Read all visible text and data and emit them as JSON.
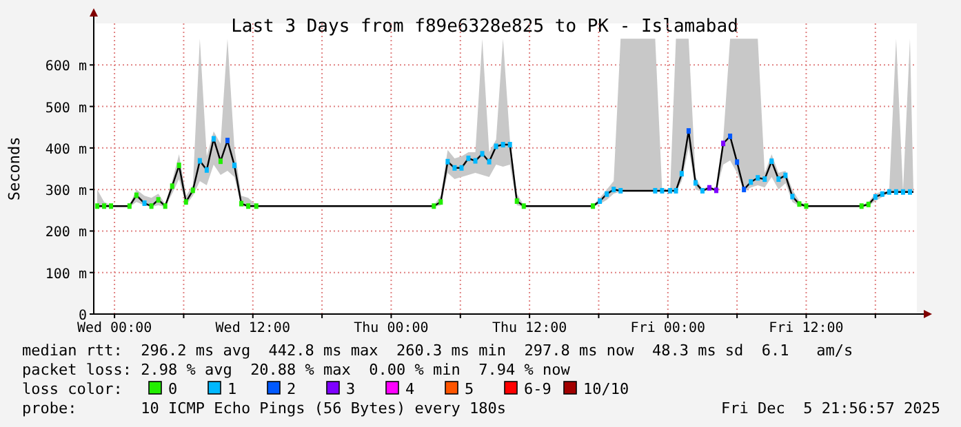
{
  "chart_data": {
    "type": "line",
    "title": "Last 3 Days from f89e6328e825 to PK - Islamabad",
    "ylabel": "Seconds",
    "x": [
      "2025-12-02T22:30",
      "2025-12-02T23:06",
      "2025-12-02T23:42",
      "2025-12-03T01:18",
      "2025-12-03T01:54",
      "2025-12-03T02:36",
      "2025-12-03T03:12",
      "2025-12-03T03:48",
      "2025-12-03T04:24",
      "2025-12-03T05:00",
      "2025-12-03T05:36",
      "2025-12-03T06:12",
      "2025-12-03T06:48",
      "2025-12-03T07:24",
      "2025-12-03T08:00",
      "2025-12-03T08:36",
      "2025-12-03T09:12",
      "2025-12-03T09:48",
      "2025-12-03T10:24",
      "2025-12-03T11:00",
      "2025-12-03T11:36",
      "2025-12-03T12:18",
      "2025-12-04T03:42",
      "2025-12-04T04:18",
      "2025-12-04T04:54",
      "2025-12-04T05:30",
      "2025-12-04T06:06",
      "2025-12-04T06:42",
      "2025-12-04T07:18",
      "2025-12-04T07:54",
      "2025-12-04T08:30",
      "2025-12-04T09:06",
      "2025-12-04T09:42",
      "2025-12-04T10:18",
      "2025-12-04T10:54",
      "2025-12-04T11:30",
      "2025-12-04T17:30",
      "2025-12-04T18:06",
      "2025-12-04T18:42",
      "2025-12-04T19:18",
      "2025-12-04T19:54",
      "2025-12-04T22:54",
      "2025-12-04T23:30",
      "2025-12-05T00:12",
      "2025-12-05T00:42",
      "2025-12-05T01:12",
      "2025-12-05T01:48",
      "2025-12-05T02:24",
      "2025-12-05T03:00",
      "2025-12-05T03:36",
      "2025-12-05T04:12",
      "2025-12-05T04:48",
      "2025-12-05T05:24",
      "2025-12-05T06:00",
      "2025-12-05T06:36",
      "2025-12-05T07:12",
      "2025-12-05T07:48",
      "2025-12-05T08:24",
      "2025-12-05T09:00",
      "2025-12-05T09:36",
      "2025-12-05T10:12",
      "2025-12-05T10:48",
      "2025-12-05T11:24",
      "2025-12-05T12:00",
      "2025-12-05T16:48",
      "2025-12-05T17:24",
      "2025-12-05T18:00",
      "2025-12-05T18:36",
      "2025-12-05T19:12",
      "2025-12-05T19:48",
      "2025-12-05T20:24",
      "2025-12-05T21:00",
      "2025-12-05T21:18"
    ],
    "series": [
      {
        "color": "#000000",
        "values": [
          260,
          260,
          260,
          260,
          286,
          267,
          260,
          275,
          260,
          308,
          358,
          270,
          298,
          369,
          347,
          422,
          368,
          418,
          358,
          266,
          260,
          260,
          260,
          270,
          367,
          352,
          352,
          375,
          369,
          386,
          367,
          404,
          408,
          408,
          272,
          260,
          260,
          272,
          289,
          300,
          297,
          297,
          297,
          297,
          297,
          338,
          441,
          316,
          297,
          304,
          298,
          411,
          428,
          366,
          300,
          318,
          328,
          325,
          368,
          325,
          334,
          283,
          265,
          260,
          260,
          264,
          282,
          289,
          294,
          294,
          294,
          294,
          294
        ],
        "lower": [
          255,
          258,
          258,
          258,
          270,
          262,
          258,
          262,
          258,
          290,
          325,
          262,
          285,
          320,
          310,
          360,
          335,
          345,
          330,
          260,
          258,
          258,
          258,
          262,
          340,
          325,
          330,
          335,
          340,
          335,
          330,
          360,
          355,
          360,
          262,
          258,
          258,
          265,
          275,
          290,
          295,
          295,
          295,
          295,
          295,
          320,
          400,
          300,
          295,
          298,
          296,
          360,
          370,
          340,
          295,
          305,
          310,
          305,
          330,
          300,
          315,
          270,
          260,
          258,
          258,
          260,
          272,
          282,
          292,
          292,
          292,
          292,
          292
        ],
        "upper": [
          300,
          270,
          262,
          262,
          300,
          285,
          280,
          290,
          265,
          320,
          385,
          285,
          310,
          663,
          380,
          440,
          410,
          663,
          400,
          285,
          280,
          262,
          262,
          285,
          395,
          375,
          380,
          390,
          390,
          663,
          390,
          420,
          663,
          420,
          290,
          262,
          262,
          280,
          300,
          320,
          663,
          663,
          300,
          300,
          663,
          663,
          663,
          330,
          300,
          310,
          300,
          420,
          663,
          663,
          663,
          663,
          663,
          340,
          385,
          340,
          345,
          300,
          272,
          262,
          262,
          270,
          290,
          295,
          297,
          663,
          297,
          663,
          297
        ]
      },
      {
        "name": "0",
        "type": "scatter",
        "marker": "square",
        "color": "#22ee00",
        "values": [
          260,
          260,
          260,
          260,
          286,
          null,
          260,
          275,
          260,
          308,
          358,
          270,
          298,
          null,
          null,
          null,
          368,
          null,
          null,
          266,
          260,
          260,
          260,
          270,
          null,
          null,
          null,
          null,
          null,
          null,
          null,
          null,
          null,
          null,
          272,
          260,
          260,
          null,
          null,
          null,
          null,
          null,
          null,
          null,
          null,
          null,
          null,
          null,
          null,
          null,
          null,
          null,
          null,
          null,
          null,
          null,
          null,
          null,
          null,
          null,
          null,
          null,
          265,
          260,
          260,
          264,
          null,
          null,
          null,
          null,
          null,
          null,
          null
        ]
      },
      {
        "name": "1",
        "type": "scatter",
        "marker": "square",
        "color": "#00b8ff",
        "values": [
          null,
          null,
          null,
          null,
          null,
          267,
          null,
          null,
          null,
          null,
          null,
          null,
          null,
          369,
          347,
          422,
          null,
          null,
          358,
          null,
          null,
          null,
          null,
          null,
          367,
          352,
          352,
          375,
          369,
          386,
          367,
          404,
          408,
          408,
          null,
          null,
          null,
          272,
          289,
          300,
          297,
          297,
          297,
          297,
          297,
          338,
          null,
          316,
          297,
          null,
          null,
          null,
          null,
          null,
          null,
          318,
          328,
          325,
          368,
          325,
          334,
          283,
          null,
          null,
          null,
          null,
          282,
          289,
          294,
          294,
          294,
          294,
          null
        ]
      },
      {
        "name": "2",
        "type": "scatter",
        "marker": "square",
        "color": "#0059ff",
        "values": [
          null,
          null,
          null,
          null,
          null,
          null,
          null,
          null,
          null,
          null,
          null,
          null,
          null,
          null,
          null,
          null,
          null,
          418,
          null,
          null,
          null,
          null,
          null,
          null,
          null,
          null,
          null,
          null,
          null,
          null,
          null,
          null,
          null,
          null,
          null,
          null,
          null,
          null,
          null,
          null,
          null,
          null,
          null,
          null,
          null,
          null,
          441,
          null,
          null,
          null,
          null,
          null,
          428,
          366,
          300,
          null,
          null,
          null,
          null,
          null,
          null,
          null,
          null,
          null,
          null,
          null,
          null,
          null,
          null,
          null,
          null,
          null,
          null
        ]
      },
      {
        "name": "3",
        "type": "scatter",
        "marker": "square",
        "color": "#7e00ff",
        "values": [
          null,
          null,
          null,
          null,
          null,
          null,
          null,
          null,
          null,
          null,
          null,
          null,
          null,
          null,
          null,
          null,
          null,
          null,
          null,
          null,
          null,
          null,
          null,
          null,
          null,
          null,
          null,
          null,
          null,
          null,
          null,
          null,
          null,
          null,
          null,
          null,
          null,
          null,
          null,
          null,
          null,
          null,
          null,
          null,
          null,
          null,
          null,
          null,
          null,
          304,
          298,
          411,
          null,
          null,
          null,
          null,
          null,
          null,
          null,
          null,
          null,
          null,
          null,
          null,
          null,
          null,
          null,
          null,
          null,
          null,
          null,
          null,
          null
        ]
      },
      {
        "name": "4",
        "type": "scatter",
        "marker": "square",
        "color": "#ff00ff",
        "values": [
          null,
          null,
          null,
          null,
          null,
          null,
          null,
          null,
          null,
          null,
          null,
          null,
          null,
          null,
          null,
          null,
          null,
          null,
          null,
          null,
          null,
          null,
          null,
          null,
          null,
          null,
          null,
          null,
          null,
          null,
          null,
          null,
          null,
          null,
          null,
          null,
          null,
          null,
          null,
          null,
          null,
          null,
          null,
          null,
          null,
          null,
          null,
          null,
          null,
          null,
          null,
          null,
          null,
          null,
          null,
          null,
          null,
          null,
          null,
          null,
          null,
          null,
          null,
          null,
          null,
          null,
          null,
          null,
          null,
          null,
          null,
          null,
          null
        ]
      },
      {
        "name": "5",
        "type": "scatter",
        "marker": "square",
        "color": "#ff5500",
        "values": [
          null,
          null,
          null,
          null,
          null,
          null,
          null,
          null,
          null,
          null,
          null,
          null,
          null,
          null,
          null,
          null,
          null,
          null,
          null,
          null,
          null,
          null,
          null,
          null,
          null,
          null,
          null,
          null,
          null,
          null,
          null,
          null,
          null,
          null,
          null,
          null,
          null,
          null,
          null,
          null,
          null,
          null,
          null,
          null,
          null,
          null,
          null,
          null,
          null,
          null,
          null,
          null,
          null,
          null,
          null,
          null,
          null,
          null,
          null,
          null,
          null,
          null,
          null,
          null,
          null,
          null,
          null,
          null,
          null,
          null,
          null,
          null,
          null
        ]
      },
      {
        "name": "6-9",
        "type": "scatter",
        "marker": "square",
        "color": "#ff0000",
        "values": [
          null,
          null,
          null,
          null,
          null,
          null,
          null,
          null,
          null,
          null,
          null,
          null,
          null,
          null,
          null,
          null,
          null,
          null,
          null,
          null,
          null,
          null,
          null,
          null,
          null,
          null,
          null,
          null,
          null,
          null,
          null,
          null,
          null,
          null,
          null,
          null,
          null,
          null,
          null,
          null,
          null,
          null,
          null,
          null,
          null,
          null,
          null,
          null,
          null,
          null,
          null,
          null,
          null,
          null,
          null,
          null,
          null,
          null,
          null,
          null,
          null,
          null,
          null,
          null,
          null,
          null,
          null,
          null,
          null,
          null,
          null,
          null,
          null
        ]
      },
      {
        "name": "10/10",
        "type": "scatter",
        "marker": "square",
        "color": "#a10000",
        "values": [
          null,
          null,
          null,
          null,
          null,
          null,
          null,
          null,
          null,
          null,
          null,
          null,
          null,
          null,
          null,
          null,
          null,
          null,
          null,
          null,
          null,
          null,
          null,
          null,
          null,
          null,
          null,
          null,
          null,
          null,
          null,
          null,
          null,
          null,
          null,
          null,
          null,
          null,
          null,
          null,
          null,
          null,
          null,
          null,
          null,
          null,
          null,
          null,
          null,
          null,
          null,
          null,
          null,
          null,
          null,
          null,
          null,
          null,
          null,
          null,
          null,
          null,
          null,
          null,
          null,
          null,
          null,
          null,
          null,
          null,
          null,
          null,
          null
        ]
      }
    ],
    "xlim": [
      "2025-12-02T22:12",
      "2025-12-05T21:36"
    ],
    "xticks": [
      {
        "value": "2025-12-03T00:00",
        "label": "Wed 00:00"
      },
      {
        "value": "2025-12-03T06:00",
        "label": null
      },
      {
        "value": "2025-12-03T12:00",
        "label": "Wed 12:00"
      },
      {
        "value": "2025-12-03T18:00",
        "label": null
      },
      {
        "value": "2025-12-04T00:00",
        "label": "Thu 00:00"
      },
      {
        "value": "2025-12-04T06:00",
        "label": null
      },
      {
        "value": "2025-12-04T12:00",
        "label": "Thu 12:00"
      },
      {
        "value": "2025-12-04T18:00",
        "label": null
      },
      {
        "value": "2025-12-05T00:00",
        "label": "Fri 00:00"
      },
      {
        "value": "2025-12-05T06:00",
        "label": null
      },
      {
        "value": "2025-12-05T12:00",
        "label": "Fri 12:00"
      },
      {
        "value": "2025-12-05T18:00",
        "label": null
      }
    ],
    "ylim": [
      0,
      700
    ],
    "yticks": [
      0,
      {
        "value": 100,
        "label": "100 m"
      },
      {
        "value": 200,
        "label": "200 m"
      },
      {
        "value": 300,
        "label": "300 m"
      },
      {
        "value": 400,
        "label": "400 m"
      },
      {
        "value": 500,
        "label": "500 m"
      },
      {
        "value": 600,
        "label": "600 m"
      }
    ],
    "grid": true,
    "legend": "bottom",
    "legend_title": "loss color:",
    "line_style": "solid",
    "annotations": [
      "median rtt:  296.2 ms avg  442.8 ms max  260.3 ms min  297.8 ms now  48.3 ms sd  6.1   am/s",
      "packet loss: 2.98 % avg  20.88 % max  0.00 % min  7.94 % now",
      "probe:       10 ICMP Echo Pings (56 Bytes) every 180s",
      "Fri Dec  5 21:56:57 2025"
    ]
  }
}
